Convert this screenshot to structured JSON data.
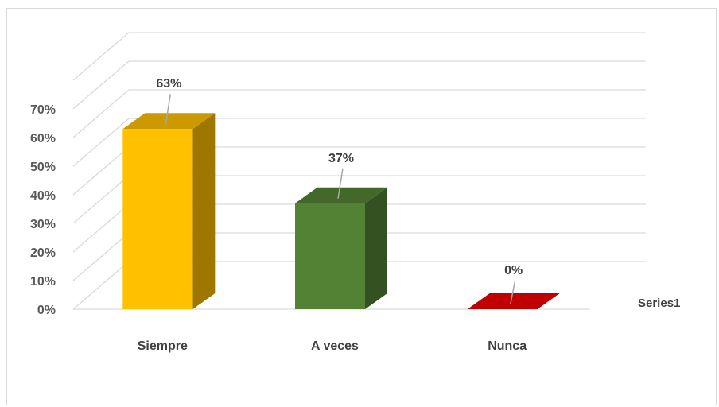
{
  "chart_data": {
    "type": "bar",
    "style": "3d-column",
    "categories": [
      "Siempre",
      "A veces",
      "Nunca"
    ],
    "series": [
      {
        "name": "Series1",
        "values": [
          63,
          37,
          0
        ],
        "labels": [
          "63%",
          "37%",
          "0%"
        ]
      }
    ],
    "bar_colors": [
      "#FFC000",
      "#548235",
      "#C00000"
    ],
    "ylim": [
      0,
      70
    ],
    "yticks": [
      0,
      10,
      20,
      30,
      40,
      50,
      60,
      70
    ],
    "ytick_labels": [
      "0%",
      "10%",
      "20%",
      "30%",
      "40%",
      "50%",
      "60%",
      "70%"
    ],
    "grid": true,
    "legend": {
      "position": "right",
      "label": "Series1"
    }
  }
}
